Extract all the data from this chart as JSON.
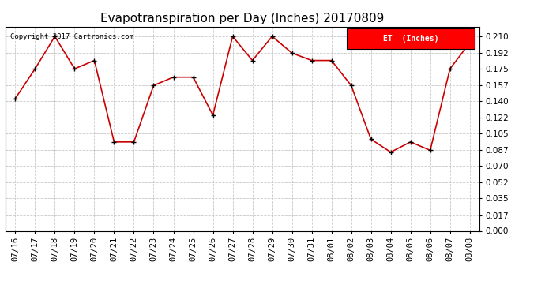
{
  "title": "Evapotranspiration per Day (Inches) 20170809",
  "copyright_text": "Copyright 2017 Cartronics.com",
  "legend_label": "ET  (Inches)",
  "legend_bg": "#ff0000",
  "line_color": "#cc0000",
  "marker_color": "#000000",
  "background_color": "#ffffff",
  "grid_color": "#bbbbbb",
  "dates": [
    "07/16",
    "07/17",
    "07/18",
    "07/19",
    "07/20",
    "07/21",
    "07/22",
    "07/23",
    "07/24",
    "07/25",
    "07/26",
    "07/27",
    "07/28",
    "07/29",
    "07/30",
    "07/31",
    "08/01",
    "08/02",
    "08/03",
    "08/04",
    "08/05",
    "08/06",
    "08/07",
    "08/08"
  ],
  "values": [
    0.143,
    0.175,
    0.21,
    0.175,
    0.184,
    0.096,
    0.096,
    0.157,
    0.166,
    0.166,
    0.125,
    0.21,
    0.184,
    0.21,
    0.192,
    0.184,
    0.184,
    0.157,
    0.099,
    0.085,
    0.096,
    0.087,
    0.175,
    0.203
  ],
  "ylim": [
    0.0,
    0.2205
  ],
  "yticks": [
    0.0,
    0.017,
    0.035,
    0.052,
    0.07,
    0.087,
    0.105,
    0.122,
    0.14,
    0.157,
    0.175,
    0.192,
    0.21
  ],
  "title_fontsize": 11,
  "tick_fontsize": 7.5,
  "copyright_fontsize": 6.5
}
